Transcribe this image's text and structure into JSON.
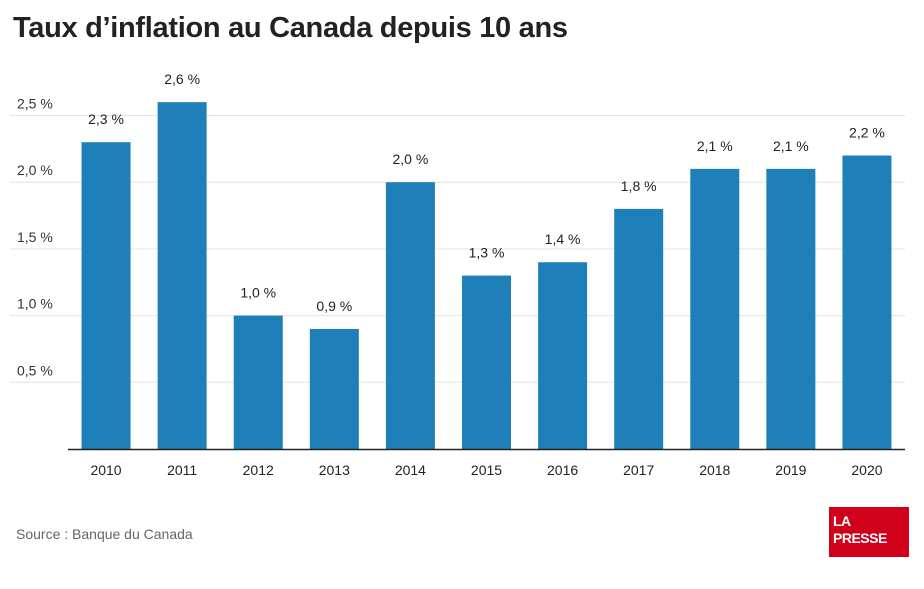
{
  "title": "Taux d’inflation au Canada depuis 10 ans",
  "source": "Source : Banque du Canada",
  "logo": {
    "line1": "LA",
    "line2": "PRESSE"
  },
  "colors": {
    "bar": "#1f7fb8",
    "logo_bg": "#d0021b",
    "grid": "#e3e3e3",
    "axis": "#222222"
  },
  "chart_data": {
    "type": "bar",
    "categories": [
      "2010",
      "2011",
      "2012",
      "2013",
      "2014",
      "2015",
      "2016",
      "2017",
      "2018",
      "2019",
      "2020"
    ],
    "values": [
      2.3,
      2.6,
      1.0,
      0.9,
      2.0,
      1.3,
      1.4,
      1.8,
      2.1,
      2.1,
      2.2
    ],
    "data_labels": [
      "2,3 %",
      "2,6 %",
      "1,0 %",
      "0,9 %",
      "2,0 %",
      "1,3 %",
      "1,4 %",
      "1,8 %",
      "2,1 %",
      "2,1 %",
      "2,2 %"
    ],
    "y_ticks": [
      0.5,
      1.0,
      1.5,
      2.0,
      2.5
    ],
    "y_tick_labels": [
      "0,5 %",
      "1,0 %",
      "1,5 %",
      "2,0 %",
      "2,5 %"
    ],
    "ylim": [
      0,
      2.5
    ],
    "grid": true,
    "legend": "none"
  }
}
